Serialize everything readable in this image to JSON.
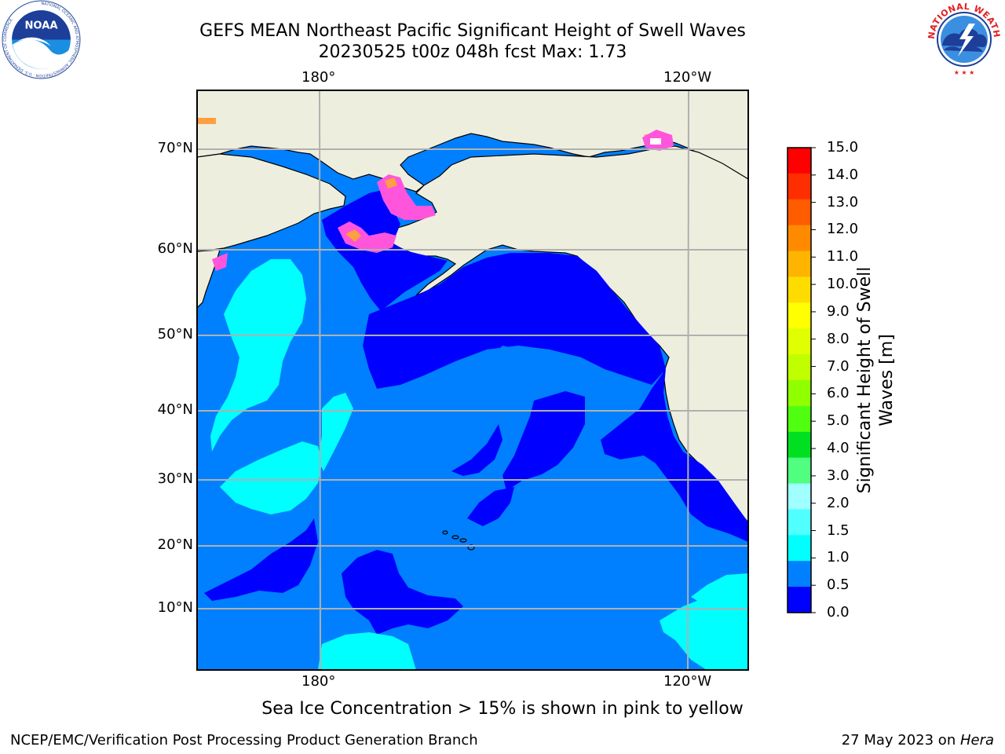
{
  "title": {
    "line1": "GEFS MEAN Northeast Pacific Significant Height of Swell Waves",
    "line2": "20230525 t00z 048h fcst   Max: 1.73"
  },
  "axes": {
    "lon_top": [
      "180°",
      "120°W"
    ],
    "lon_bottom": [
      "180°",
      "120°W"
    ],
    "lat": [
      "70°N",
      "60°N",
      "50°N",
      "40°N",
      "30°N",
      "20°N",
      "10°N"
    ]
  },
  "colorbar": {
    "label": "Significant Height of Swell Waves [m]",
    "label_line1": "Significant Height of Swell",
    "label_line2": "Waves [m]",
    "ticks": [
      "15.0",
      "14.0",
      "13.0",
      "12.0",
      "11.0",
      "10.0",
      "9.0",
      "8.0",
      "7.0",
      "6.0",
      "5.0",
      "4.0",
      "3.0",
      "2.0",
      "1.5",
      "1.0",
      "0.5",
      "0.0"
    ],
    "colors_top_to_bottom": [
      "#ff0000",
      "#ff2e00",
      "#ff5c00",
      "#ff8a00",
      "#ffb400",
      "#ffdc00",
      "#ffff00",
      "#e0ff00",
      "#c0ff00",
      "#90ff00",
      "#50ff10",
      "#00e020",
      "#50ff80",
      "#a0ffff",
      "#50ffff",
      "#00ffff",
      "#0080ff",
      "#0000ff"
    ]
  },
  "logos": {
    "noaa": {
      "text": "NOAA",
      "ring_text": "NATIONAL OCEANIC AND ATMOSPHERIC ADMINISTRATION · U.S. DEPARTMENT OF COMMERCE"
    },
    "nws": {
      "ring_text": "NATIONAL WEATHER SERVICE"
    }
  },
  "notes": {
    "ice": "Sea Ice Concentration > 15% is shown in pink to yellow"
  },
  "footer": {
    "left": "NCEP/EMC/Verification Post Processing Product Generation Branch",
    "date": "27 May 2023 on ",
    "machine": "Hera"
  },
  "map_colors": {
    "land": "#eeeedf",
    "ocean_0_0_5": "#0000ff",
    "ocean_0_5_1_0": "#0080ff",
    "ocean_1_0_1_5": "#00ffff",
    "ice": "#ff55dd"
  }
}
